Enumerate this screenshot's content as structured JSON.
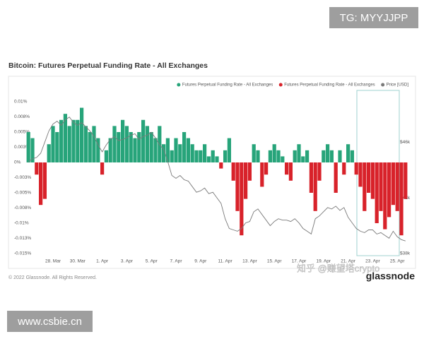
{
  "chart_data": {
    "type": "bar",
    "title": "Bitcoin: Futures Perpetual Funding Rate - All Exchanges",
    "categories": [
      null,
      null,
      null,
      null,
      null,
      null,
      "28. Mar",
      null,
      null,
      null,
      null,
      null,
      "30. Mar",
      null,
      null,
      null,
      null,
      null,
      "1. Apr",
      null,
      null,
      null,
      null,
      null,
      "3. Apr",
      null,
      null,
      null,
      null,
      null,
      "5. Apr",
      null,
      null,
      null,
      null,
      null,
      "7. Apr",
      null,
      null,
      null,
      null,
      null,
      "9. Apr",
      null,
      null,
      null,
      null,
      null,
      "11. Apr",
      null,
      null,
      null,
      null,
      null,
      "13. Apr",
      null,
      null,
      null,
      null,
      null,
      "15. Apr",
      null,
      null,
      null,
      null,
      null,
      "17. Apr",
      null,
      null,
      null,
      null,
      null,
      "19. Apr",
      null,
      null,
      null,
      null,
      null,
      "21. Apr",
      null,
      null,
      null,
      null,
      null,
      "23. Apr",
      null,
      null,
      null,
      null,
      null,
      "25. Apr",
      null,
      null
    ],
    "series": [
      {
        "name": "Futures Perpetual Funding Rate - All Exchanges",
        "color": "#27a47a",
        "negative_color": "#d8222a",
        "values": [
          0.005,
          0.004,
          -0.002,
          -0.007,
          -0.006,
          0.003,
          0.006,
          0.005,
          0.007,
          0.008,
          0.006,
          0.007,
          0.007,
          0.009,
          0.006,
          0.005,
          0.006,
          0.004,
          -0.002,
          0.002,
          0.004,
          0.006,
          0.005,
          0.007,
          0.006,
          0.005,
          0.004,
          0.005,
          0.007,
          0.006,
          0.005,
          0.004,
          0.006,
          0.003,
          0.004,
          0.002,
          0.004,
          0.003,
          0.005,
          0.004,
          0.003,
          0.002,
          0.002,
          0.003,
          0.001,
          0.002,
          0.001,
          -0.001,
          0.002,
          0.004,
          -0.003,
          -0.008,
          -0.012,
          -0.006,
          -0.003,
          0.003,
          0.002,
          -0.004,
          -0.002,
          0.002,
          0.003,
          0.002,
          0.001,
          -0.002,
          -0.003,
          0.002,
          0.003,
          0.001,
          0.002,
          -0.005,
          -0.008,
          -0.003,
          0.002,
          0.003,
          0.002,
          -0.005,
          0.002,
          -0.002,
          0.003,
          0.002,
          -0.002,
          -0.004,
          -0.008,
          -0.005,
          -0.006,
          -0.01,
          -0.008,
          -0.011,
          -0.009,
          -0.007,
          -0.008,
          -0.012,
          -0.006
        ]
      },
      {
        "name": "Price [USD]",
        "color": "#7a7a7a",
        "axis": "y2",
        "type": "line",
        "values": [
          44600,
          44800,
          44900,
          45200,
          46000,
          46800,
          47300,
          47500,
          47200,
          47600,
          47800,
          47400,
          47200,
          47400,
          47100,
          46800,
          46400,
          45800,
          45300,
          45800,
          46200,
          46400,
          46100,
          46200,
          46300,
          46500,
          46600,
          46200,
          46400,
          46500,
          46700,
          46300,
          45800,
          45500,
          44600,
          43600,
          43400,
          43600,
          43300,
          43200,
          42800,
          42400,
          42500,
          42700,
          42300,
          42400,
          42000,
          41600,
          40500,
          39800,
          39700,
          39600,
          39800,
          40200,
          40300,
          41000,
          41200,
          40800,
          40400,
          40000,
          40300,
          40500,
          40400,
          40400,
          40300,
          40500,
          40200,
          39800,
          39600,
          39400,
          40500,
          40700,
          41000,
          41300,
          41200,
          41400,
          41100,
          41300,
          40600,
          40200,
          39800,
          39600,
          39500,
          39700,
          39700,
          39400,
          39500,
          39300,
          39100,
          39600,
          39200,
          39000,
          38900
        ]
      }
    ],
    "ylim": [
      -0.015,
      0.01
    ],
    "yticks": [
      {
        "value": 0.01,
        "label": "0.01%"
      },
      {
        "value": 0.0075,
        "label": "0.008%"
      },
      {
        "value": 0.005,
        "label": "0.005%"
      },
      {
        "value": 0.0025,
        "label": "0.003%"
      },
      {
        "value": 0,
        "label": "0%"
      },
      {
        "value": -0.0025,
        "label": "-0.003%"
      },
      {
        "value": -0.005,
        "label": "-0.005%"
      },
      {
        "value": -0.0075,
        "label": "-0.008%"
      },
      {
        "value": -0.01,
        "label": "-0.01%"
      },
      {
        "value": -0.0125,
        "label": "-0.013%"
      },
      {
        "value": -0.015,
        "label": "-0.015%"
      }
    ],
    "y2lim": [
      38000,
      48900
    ],
    "y2ticks": [
      {
        "value": 46000,
        "label": "$46k"
      },
      {
        "value": 42000,
        "label": "$42k"
      },
      {
        "value": 38000,
        "label": "$38k"
      }
    ],
    "grid": false,
    "legend": "top-right",
    "copyright": "© 2022 Glassnode. All Rights Reserved.",
    "logo": "glassnode"
  },
  "watermarks": [
    "TG: MYYJJPP",
    "知乎 @赚望塔crypto",
    "www.csbie.cn"
  ]
}
